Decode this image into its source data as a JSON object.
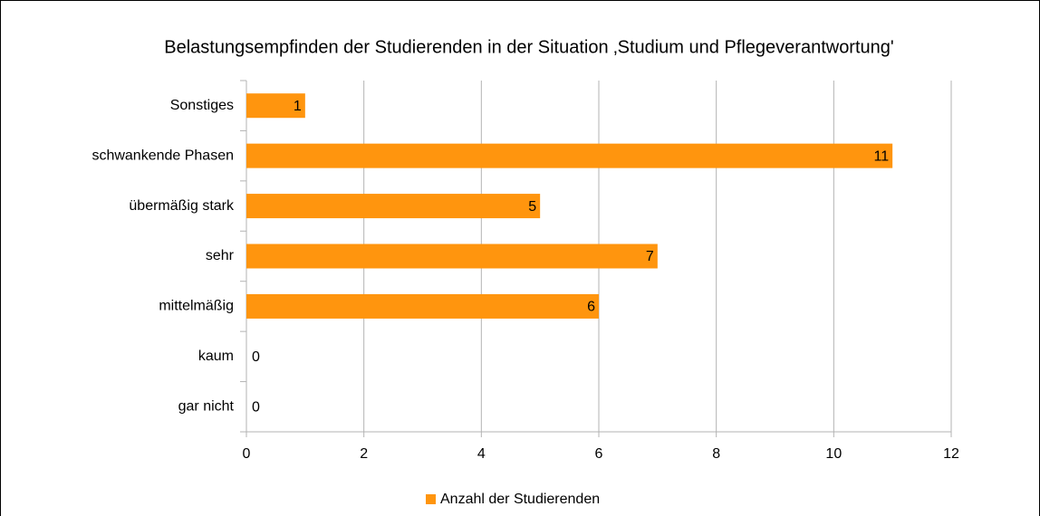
{
  "chart_data": {
    "type": "bar",
    "orientation": "horizontal",
    "title": "Belastungsempfinden der Studierenden in der Situation ‚Studium und Pflegeverantwortung'",
    "categories": [
      "Sonstiges",
      "schwankende Phasen",
      "übermäßig stark",
      "sehr",
      "mittelmäßig",
      "kaum",
      "gar nicht"
    ],
    "series": [
      {
        "name": "Anzahl der Studierenden",
        "color": "#ff950e",
        "values": [
          1,
          11,
          5,
          7,
          6,
          0,
          0
        ]
      }
    ],
    "xlim": [
      0,
      12
    ],
    "xticks": [
      0,
      2,
      4,
      6,
      8,
      10,
      12
    ],
    "grid": true,
    "legend": "bottom"
  }
}
